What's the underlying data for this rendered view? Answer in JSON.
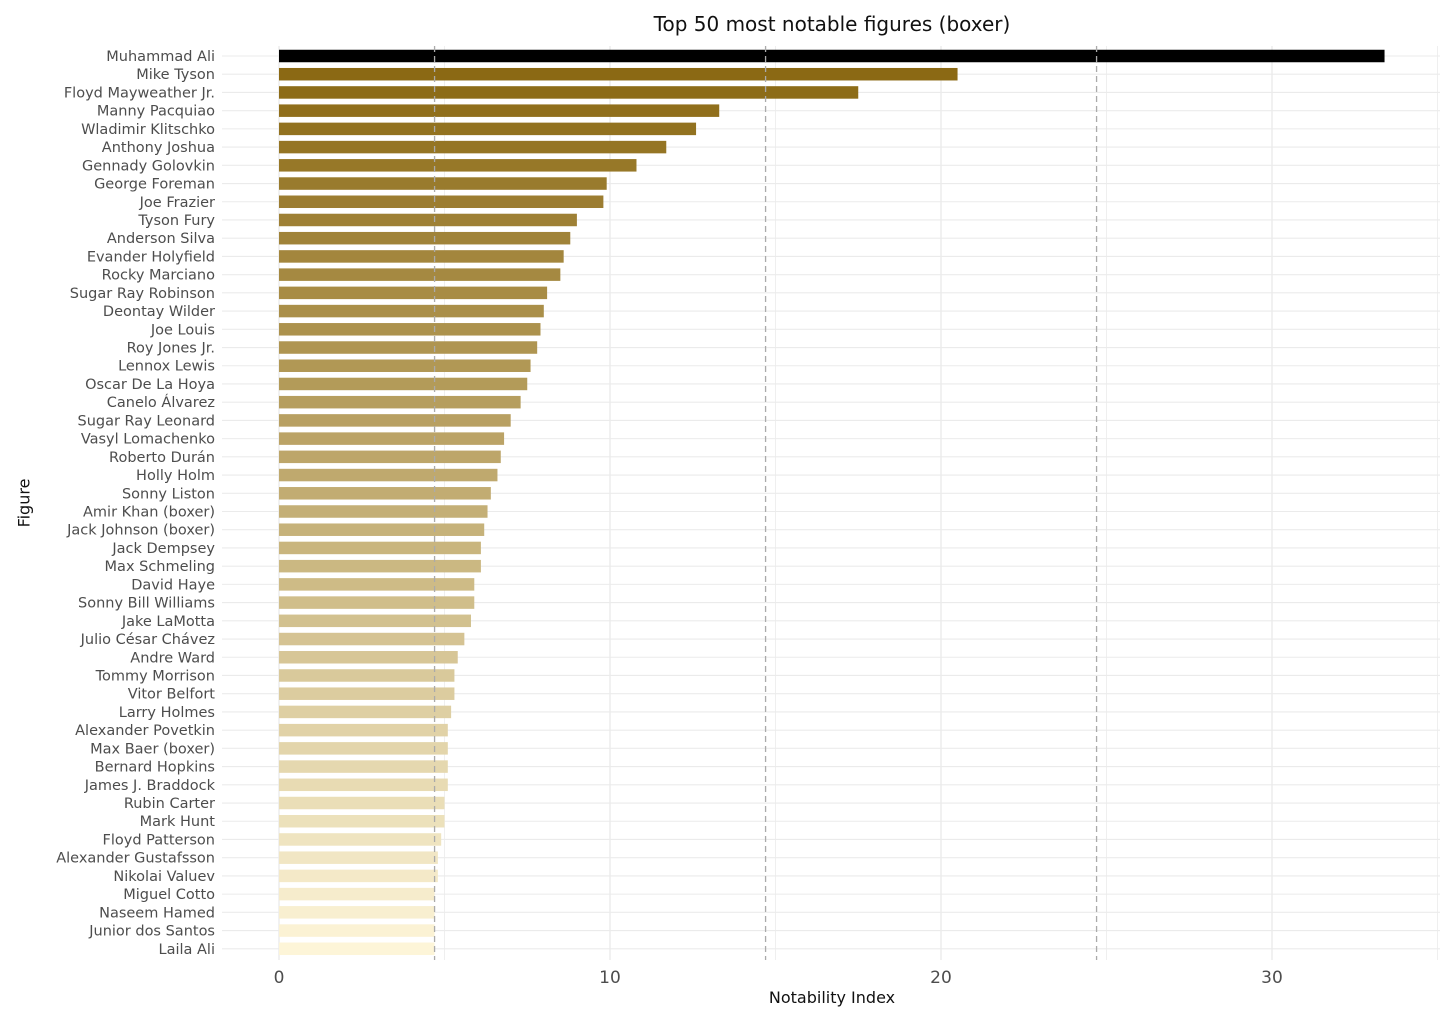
{
  "chart_data": {
    "type": "bar",
    "orientation": "horizontal",
    "title": "Top 50 most notable figures (boxer)",
    "xlabel": "Notability Index",
    "ylabel": "Figure",
    "xlim": [
      -1.8,
      35
    ],
    "xticks": [
      0,
      10,
      20,
      30
    ],
    "grid": true,
    "legend": "none",
    "reference_lines": [
      4.7,
      14.7,
      24.7
    ],
    "colors": {
      "top": "#000000",
      "dark": "#8b6914",
      "light": "#fdf5d8",
      "grid": "#ebebeb",
      "refline": "#aaaaaa"
    },
    "categories": [
      "Muhammad Ali",
      "Mike Tyson",
      "Floyd Mayweather Jr.",
      "Manny Pacquiao",
      "Wladimir Klitschko",
      "Anthony Joshua",
      "Gennady Golovkin",
      "George Foreman",
      "Joe Frazier",
      "Tyson Fury",
      "Anderson Silva",
      "Evander Holyfield",
      "Rocky Marciano",
      "Sugar Ray Robinson",
      "Deontay Wilder",
      "Joe Louis",
      "Roy Jones Jr.",
      "Lennox Lewis",
      "Oscar De La Hoya",
      "Canelo Álvarez",
      "Sugar Ray Leonard",
      "Vasyl Lomachenko",
      "Roberto Durán",
      "Holly Holm",
      "Sonny Liston",
      "Amir Khan (boxer)",
      "Jack Johnson (boxer)",
      "Jack Dempsey",
      "Max Schmeling",
      "David Haye",
      "Sonny Bill Williams",
      "Jake LaMotta",
      "Julio César Chávez",
      "Andre Ward",
      "Tommy Morrison",
      "Vitor Belfort",
      "Larry Holmes",
      "Alexander Povetkin",
      "Max Baer (boxer)",
      "Bernard Hopkins",
      "James J. Braddock",
      "Rubin Carter",
      "Mark Hunt",
      "Floyd Patterson",
      "Alexander Gustafsson",
      "Nikolai Valuev",
      "Miguel Cotto",
      "Naseem Hamed",
      "Junior dos Santos",
      "Laila Ali"
    ],
    "values": [
      33.4,
      20.5,
      17.5,
      13.3,
      12.6,
      11.7,
      10.8,
      9.9,
      9.8,
      9.0,
      8.8,
      8.6,
      8.5,
      8.1,
      8.0,
      7.9,
      7.8,
      7.6,
      7.5,
      7.3,
      7.0,
      6.8,
      6.7,
      6.6,
      6.4,
      6.3,
      6.2,
      6.1,
      6.1,
      5.9,
      5.9,
      5.8,
      5.6,
      5.4,
      5.3,
      5.3,
      5.2,
      5.1,
      5.1,
      5.1,
      5.1,
      5.0,
      5.0,
      4.9,
      4.8,
      4.8,
      4.7,
      4.7,
      4.7,
      4.7
    ]
  }
}
